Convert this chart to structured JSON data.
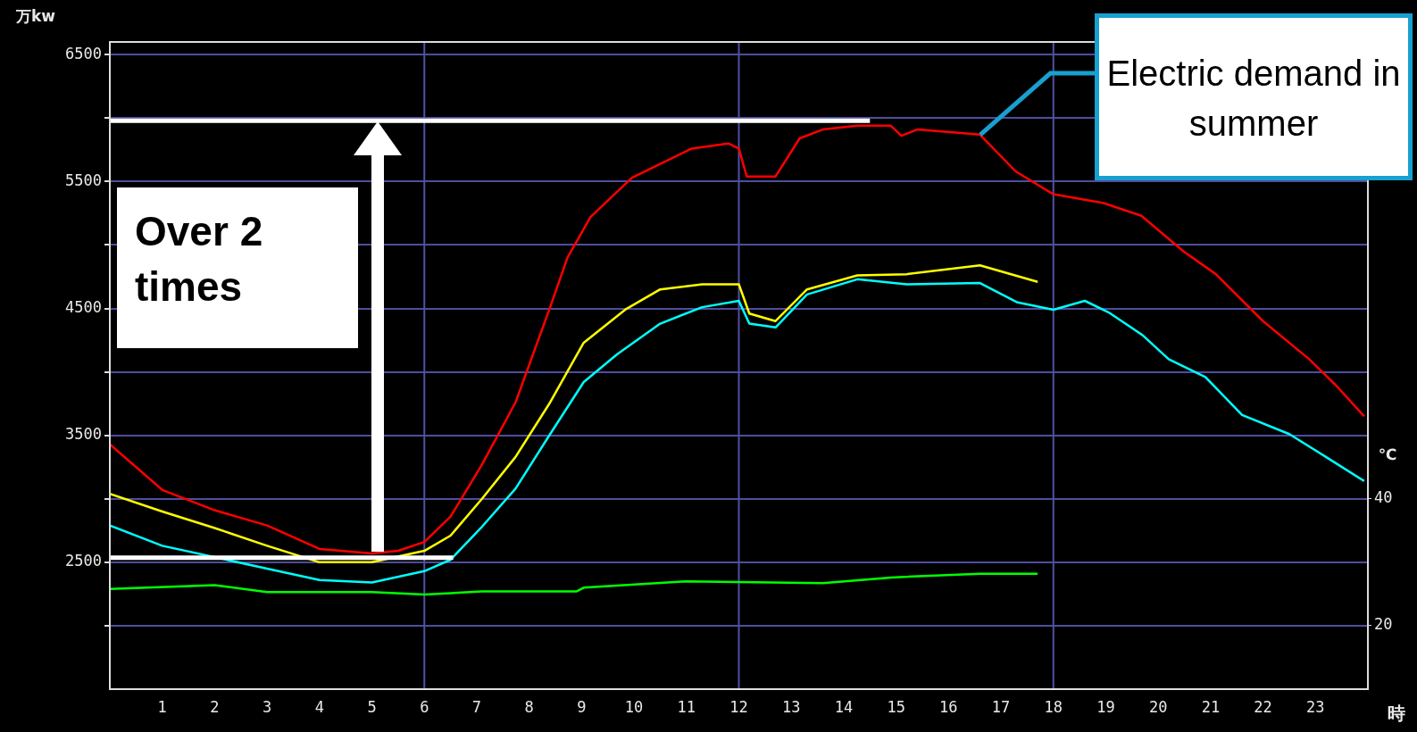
{
  "chart_data": {
    "type": "line",
    "ylabel": "万kw",
    "y2label": "℃",
    "xlabel": "時",
    "xlim": [
      0,
      24
    ],
    "xticks": [
      1,
      2,
      3,
      4,
      5,
      6,
      7,
      8,
      9,
      10,
      11,
      12,
      13,
      14,
      15,
      16,
      17,
      18,
      19,
      20,
      21,
      22,
      23
    ],
    "ylim": [
      1500,
      6600
    ],
    "yticks": [
      {
        "value": 2000,
        "label": null
      },
      2500,
      {
        "value": 3000,
        "label": null
      },
      3500,
      {
        "value": 4000,
        "label": null
      },
      4500,
      {
        "value": 5000,
        "label": null
      },
      5500,
      {
        "value": 6000,
        "label": null
      },
      6500
    ],
    "y2lim": [
      10,
      112
    ],
    "y2ticks": [
      20,
      40
    ],
    "grid": "y",
    "legend": false,
    "marker": "none",
    "line_style": "solid",
    "ref_lines": [
      {
        "axis": "x",
        "value": 6,
        "color": "#5050a8"
      },
      {
        "axis": "x",
        "value": 12,
        "color": "#5050a8"
      },
      {
        "axis": "x",
        "value": 18,
        "color": "#5050a8"
      }
    ],
    "series": [
      {
        "color": "#ff0000",
        "x": [
          0,
          1,
          2,
          3,
          4,
          5,
          5.5,
          6,
          6.5,
          7.1,
          7.74,
          8.4,
          8.73,
          9.17,
          9.96,
          11.1,
          11.8,
          12,
          12.15,
          12.7,
          13.16,
          13.6,
          14.26,
          14.9,
          15.1,
          15.4,
          16.6,
          17.28,
          18,
          18.96,
          19.68,
          20.48,
          21.1,
          22,
          22.88,
          23.4,
          23.93
        ],
        "values": [
          3430,
          3070,
          2910,
          2790,
          2605,
          2570,
          2590,
          2660,
          2860,
          3270,
          3760,
          4510,
          4900,
          5220,
          5530,
          5760,
          5800,
          5760,
          5540,
          5540,
          5840,
          5910,
          5940,
          5940,
          5860,
          5910,
          5870,
          5580,
          5400,
          5330,
          5230,
          4950,
          4770,
          4400,
          4100,
          3890,
          3650
        ]
      },
      {
        "color": "#ffff00",
        "x": [
          0,
          1,
          2,
          3,
          4,
          5,
          6,
          6.5,
          7.1,
          7.74,
          8.4,
          9.04,
          9.83,
          10.5,
          11.3,
          12,
          12.2,
          12.7,
          13.3,
          14.26,
          15.2,
          16.6,
          17.7
        ],
        "values": [
          3040,
          2900,
          2770,
          2630,
          2500,
          2500,
          2590,
          2710,
          3000,
          3330,
          3760,
          4230,
          4490,
          4650,
          4690,
          4690,
          4460,
          4400,
          4650,
          4760,
          4770,
          4840,
          4710
        ]
      },
      {
        "color": "#00ffff",
        "x": [
          0,
          1,
          3,
          4,
          5,
          6,
          6.5,
          7.1,
          7.74,
          8.4,
          9.04,
          9.68,
          10.5,
          11.3,
          12,
          12.2,
          12.7,
          13.3,
          14.26,
          15.2,
          16.6,
          17.3,
          18,
          18.6,
          19.05,
          19.7,
          20.2,
          20.9,
          21.6,
          22.5,
          23.2,
          23.93
        ],
        "values": [
          2790,
          2630,
          2450,
          2360,
          2340,
          2430,
          2520,
          2780,
          3080,
          3510,
          3920,
          4140,
          4380,
          4510,
          4560,
          4380,
          4350,
          4610,
          4730,
          4690,
          4700,
          4550,
          4490,
          4560,
          4470,
          4290,
          4100,
          3960,
          3660,
          3510,
          3330,
          3140
        ]
      },
      {
        "color": "#00ff00",
        "axis": "y2",
        "x": [
          0,
          2,
          3,
          5,
          6,
          7.1,
          8.9,
          9.04,
          11,
          13.6,
          14.9,
          16.6,
          17.7
        ],
        "values": [
          25.8,
          26.4,
          25.3,
          25.3,
          24.9,
          25.4,
          25.4,
          26,
          27,
          26.7,
          27.6,
          28.2,
          28.2
        ]
      },
      {
        "color": "#ffffff",
        "x": [
          0,
          14.5
        ],
        "values": [
          5980,
          5980
        ]
      },
      {
        "color": "#ffffff",
        "x": [
          0,
          6.55
        ],
        "values": [
          2535,
          2535
        ]
      }
    ],
    "annotations": [
      "Over 2 times",
      {
        "text": "Electric demand in summer",
        "x": 16.6,
        "y": 5870
      }
    ]
  }
}
